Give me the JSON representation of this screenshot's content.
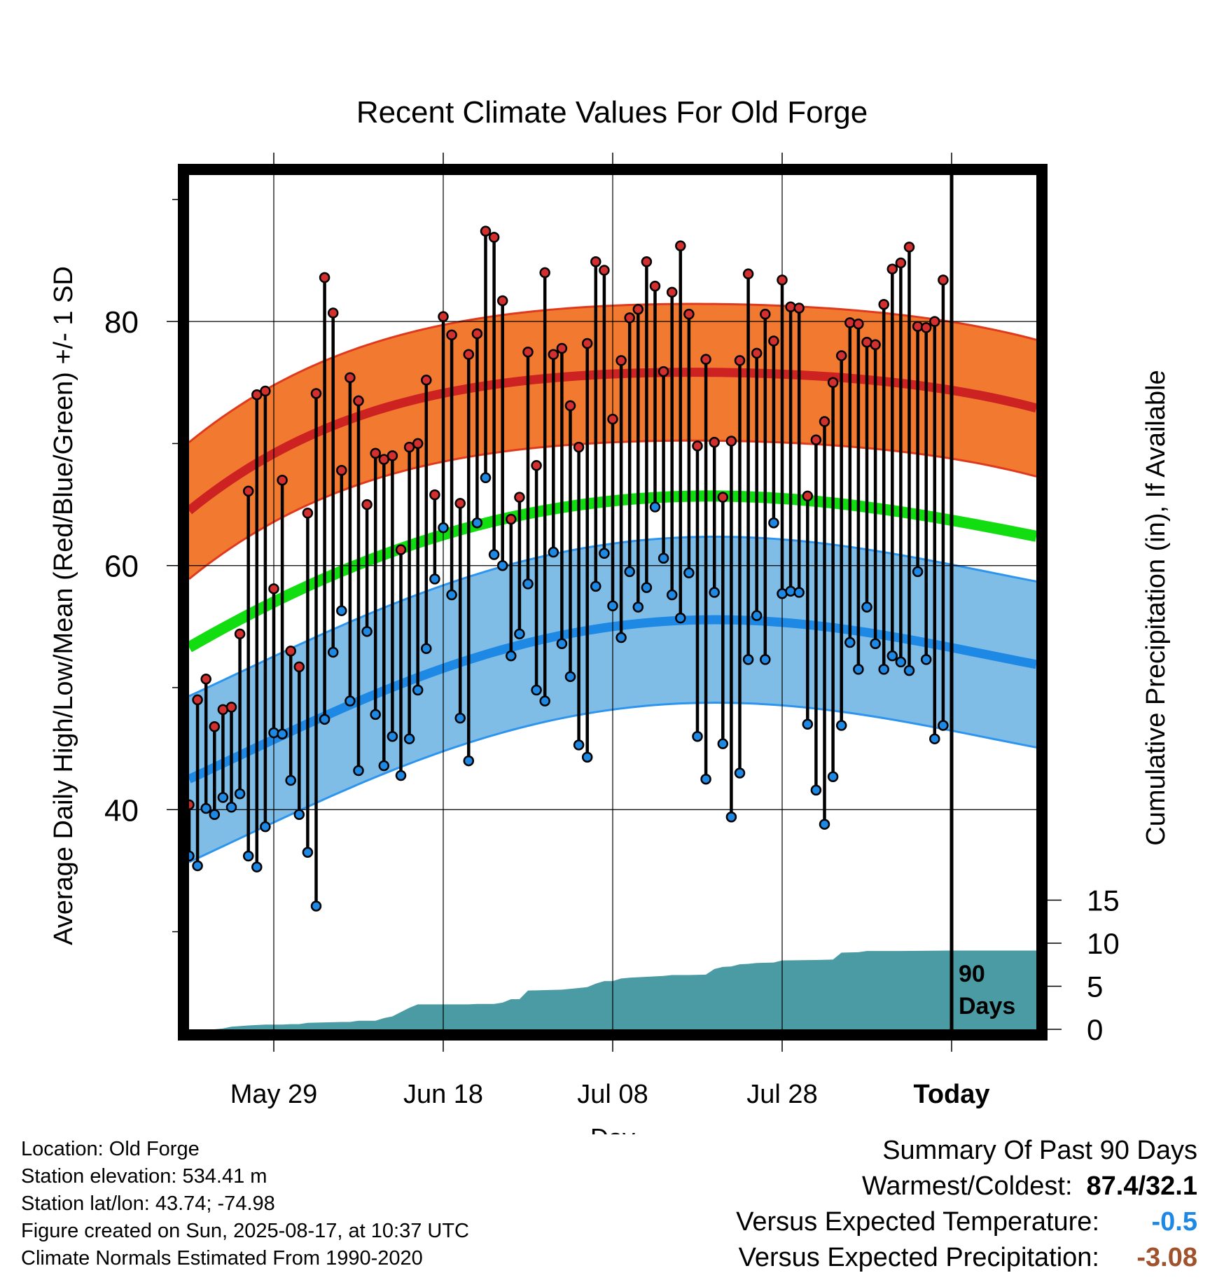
{
  "chart_data": {
    "type": "line",
    "title": "Recent Climate Values For Old Forge",
    "xlabel": "Day",
    "ylabel": "Average Daily High/Low/Mean (Red/Blue/Green) +/- 1 SD",
    "y2label": "Cumulative Precipitation (in), If Available",
    "x_ticks": [
      "May 29",
      "Jun 18",
      "Jul 08",
      "Jul 28",
      "Today"
    ],
    "y_ticks": [
      "40",
      "60",
      "80"
    ],
    "y2_ticks": [
      "0",
      "5",
      "10",
      "15"
    ],
    "ylim": [
      22,
      92
    ],
    "y2lim": [
      0,
      15
    ],
    "marker_label": "90 Days",
    "colors": {
      "high_band": "#F27A30",
      "high_mean": "#CC2222",
      "low_band": "#7FBDE6",
      "low_mean": "#1E88E5",
      "mean": "#11DD11",
      "precip": "#4A9BA4",
      "high_point": "#D32F2F",
      "low_point": "#1E88E5"
    },
    "normals": {
      "high_mean": [
        64.5,
        73.3,
        75.7,
        75.5,
        72.9
      ],
      "high_sd": 5.6,
      "low_mean": [
        42.5,
        50.3,
        55.0,
        55.0,
        51.9
      ],
      "low_sd": 6.8,
      "mean": [
        53.3,
        61.4,
        65.3,
        65.2,
        62.4
      ]
    },
    "daily": {
      "high": [
        40.4,
        49.0,
        50.7,
        46.8,
        48.2,
        48.4,
        54.4,
        66.1,
        74.0,
        74.3,
        58.1,
        67.0,
        53.0,
        51.7,
        64.3,
        74.1,
        83.6,
        80.7,
        67.8,
        75.4,
        73.5,
        65.0,
        69.2,
        68.7,
        69.0,
        61.3,
        69.7,
        70.0,
        75.2,
        65.8,
        80.4,
        78.9,
        65.1,
        77.3,
        79.0,
        87.4,
        86.9,
        81.7,
        63.8,
        65.6,
        77.5,
        68.2,
        84.0,
        77.3,
        77.8,
        73.1,
        69.7,
        78.2,
        84.9,
        84.2,
        72.0,
        76.8,
        80.3,
        81.0,
        84.9,
        82.9,
        75.9,
        82.4,
        86.2,
        80.6,
        69.8,
        76.9,
        70.1,
        65.6,
        70.2,
        76.8,
        83.9,
        77.4,
        80.6,
        78.4,
        83.4,
        81.2,
        81.1,
        65.7,
        70.3,
        71.8,
        75.0,
        77.2,
        79.9,
        79.8,
        78.3,
        78.1,
        81.4,
        84.3,
        84.8,
        86.1,
        79.6,
        79.5,
        80.0,
        83.4
      ],
      "low": [
        36.2,
        35.4,
        40.1,
        39.6,
        41.0,
        40.2,
        41.3,
        36.2,
        35.3,
        38.6,
        46.3,
        46.2,
        42.4,
        39.6,
        36.5,
        32.1,
        47.4,
        52.9,
        56.3,
        48.9,
        43.2,
        54.6,
        47.8,
        43.6,
        46.0,
        42.8,
        45.8,
        49.8,
        53.2,
        58.9,
        63.1,
        57.6,
        47.5,
        44.0,
        63.5,
        67.2,
        60.9,
        60.0,
        52.6,
        54.4,
        58.5,
        49.8,
        48.9,
        61.1,
        53.6,
        50.9,
        45.3,
        44.3,
        58.3,
        61.0,
        56.7,
        54.1,
        59.5,
        56.6,
        58.2,
        64.8,
        60.6,
        57.6,
        55.7,
        59.4,
        46.0,
        42.5,
        57.8,
        45.4,
        39.4,
        43.0,
        52.3,
        55.9,
        52.3,
        63.5,
        57.7,
        57.9,
        57.8,
        47.0,
        41.6,
        38.8,
        42.7,
        46.9,
        53.7,
        51.5,
        56.6,
        53.6,
        51.5,
        52.6,
        52.1,
        51.4,
        59.5,
        52.3,
        45.8,
        46.9
      ]
    },
    "precip_cumulative": [
      [
        0,
        0
      ],
      [
        3,
        0
      ],
      [
        4,
        0.1
      ],
      [
        5,
        0.3
      ],
      [
        7,
        0.45
      ],
      [
        9,
        0.55
      ],
      [
        11,
        0.55
      ],
      [
        12,
        0.6
      ],
      [
        13,
        0.6
      ],
      [
        14,
        0.75
      ],
      [
        16,
        0.8
      ],
      [
        18,
        0.85
      ],
      [
        19,
        0.85
      ],
      [
        20,
        1.0
      ],
      [
        22,
        1.0
      ],
      [
        23,
        1.3
      ],
      [
        24,
        1.5
      ],
      [
        25,
        2.0
      ],
      [
        26,
        2.5
      ],
      [
        27,
        2.9
      ],
      [
        30,
        2.9
      ],
      [
        33,
        2.9
      ],
      [
        34,
        2.95
      ],
      [
        36,
        2.95
      ],
      [
        37,
        3.1
      ],
      [
        38,
        3.5
      ],
      [
        39,
        3.5
      ],
      [
        40,
        4.5
      ],
      [
        42,
        4.55
      ],
      [
        44,
        4.6
      ],
      [
        46,
        4.8
      ],
      [
        47,
        4.9
      ],
      [
        48,
        5.3
      ],
      [
        49,
        5.6
      ],
      [
        50,
        5.6
      ],
      [
        51,
        5.9
      ],
      [
        52,
        6.0
      ],
      [
        54,
        6.1
      ],
      [
        55,
        6.15
      ],
      [
        56,
        6.2
      ],
      [
        57,
        6.3
      ],
      [
        59,
        6.3
      ],
      [
        61,
        6.35
      ],
      [
        62,
        7.0
      ],
      [
        63,
        7.25
      ],
      [
        64,
        7.3
      ],
      [
        65,
        7.55
      ],
      [
        66,
        7.6
      ],
      [
        67,
        7.7
      ],
      [
        69,
        7.75
      ],
      [
        70,
        8.0
      ],
      [
        74,
        8.05
      ],
      [
        76,
        8.1
      ],
      [
        77,
        8.9
      ],
      [
        79,
        8.95
      ],
      [
        80,
        9.1
      ],
      [
        84,
        9.1
      ],
      [
        90,
        9.15
      ],
      [
        100,
        9.15
      ]
    ]
  },
  "info": {
    "location": "Location: Old Forge",
    "elevation": "Station elevation: 534.41 m",
    "latlon": "Station lat/lon: 43.74; -74.98",
    "created": "Figure created on Sun, 2025-08-17, at 10:37 UTC",
    "normals": "Climate Normals Estimated From 1990-2020"
  },
  "summary": {
    "title": "Summary Of Past 90 Days",
    "warmest_label": "Warmest/Coldest:",
    "warmest_value": "87.4/32.1",
    "temp_label": "Versus Expected Temperature:",
    "temp_value": "-0.5",
    "temp_color": "#1E88E5",
    "precip_label": "Versus Expected Precipitation:",
    "precip_value": "-3.08",
    "precip_color": "#A0522D"
  }
}
